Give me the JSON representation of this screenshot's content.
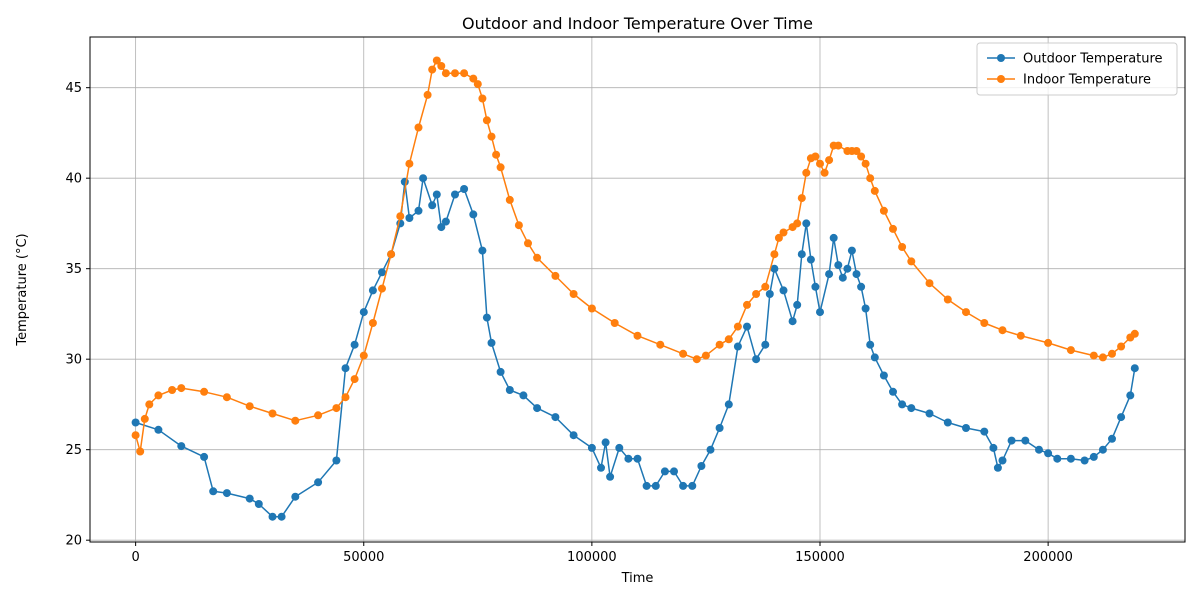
{
  "chart_data": {
    "type": "line",
    "title": "Outdoor and Indoor Temperature Over Time",
    "xlabel": "Time",
    "ylabel": "Temperature (°C)",
    "xlim": [
      -10000,
      230000
    ],
    "ylim": [
      19.9,
      47.8
    ],
    "xticks": [
      0,
      50000,
      100000,
      150000,
      200000
    ],
    "yticks": [
      20,
      25,
      30,
      35,
      40,
      45
    ],
    "grid": true,
    "legend_position": "top-right",
    "series": [
      {
        "name": "Outdoor Temperature",
        "color": "#1f77b4",
        "marker": "circle",
        "x": [
          0,
          5000,
          10000,
          15000,
          17000,
          20000,
          25000,
          27000,
          30000,
          32000,
          35000,
          40000,
          44000,
          46000,
          48000,
          50000,
          52000,
          54000,
          56000,
          58000,
          59000,
          60000,
          62000,
          63000,
          65000,
          66000,
          67000,
          68000,
          70000,
          72000,
          74000,
          76000,
          77000,
          78000,
          80000,
          82000,
          85000,
          88000,
          92000,
          96000,
          100000,
          102000,
          103000,
          104000,
          106000,
          108000,
          110000,
          112000,
          114000,
          116000,
          118000,
          120000,
          122000,
          124000,
          126000,
          128000,
          130000,
          132000,
          134000,
          136000,
          138000,
          139000,
          140000,
          142000,
          144000,
          145000,
          146000,
          147000,
          148000,
          149000,
          150000,
          152000,
          153000,
          154000,
          155000,
          156000,
          157000,
          158000,
          159000,
          160000,
          161000,
          162000,
          164000,
          166000,
          168000,
          170000,
          174000,
          178000,
          182000,
          186000,
          188000,
          189000,
          190000,
          192000,
          195000,
          198000,
          200000,
          202000,
          205000,
          208000,
          210000,
          212000,
          214000,
          216000,
          218000,
          219000
        ],
        "y": [
          26.5,
          26.1,
          25.2,
          24.6,
          22.7,
          22.6,
          22.3,
          22.0,
          21.3,
          21.3,
          22.4,
          23.2,
          24.4,
          29.5,
          30.8,
          32.6,
          33.8,
          34.8,
          35.8,
          37.5,
          39.8,
          37.8,
          38.2,
          40.0,
          38.5,
          39.1,
          37.3,
          37.6,
          39.1,
          39.4,
          38.0,
          36.0,
          32.3,
          30.9,
          29.3,
          28.3,
          28.0,
          27.3,
          26.8,
          25.8,
          25.1,
          24.0,
          25.4,
          23.5,
          25.1,
          24.5,
          24.5,
          23.0,
          23.0,
          23.8,
          23.8,
          23.0,
          23.0,
          24.1,
          25.0,
          26.2,
          27.5,
          30.7,
          31.8,
          30.0,
          30.8,
          33.6,
          35.0,
          33.8,
          32.1,
          33.0,
          35.8,
          37.5,
          35.5,
          34.0,
          32.6,
          34.7,
          36.7,
          35.2,
          34.5,
          35.0,
          36.0,
          34.7,
          34.0,
          32.8,
          30.8,
          30.1,
          29.1,
          28.2,
          27.5,
          27.3,
          27.0,
          26.5,
          26.2,
          26.0,
          25.1,
          24.0,
          24.4,
          25.5,
          25.5,
          25.0,
          24.8,
          24.5,
          24.5,
          24.4,
          24.6,
          25.0,
          25.6,
          26.8,
          28.0,
          29.5
        ]
      },
      {
        "name": "Indoor Temperature",
        "color": "#ff7f0e",
        "marker": "circle",
        "x": [
          0,
          1000,
          2000,
          3000,
          5000,
          8000,
          10000,
          15000,
          20000,
          25000,
          30000,
          35000,
          40000,
          44000,
          46000,
          48000,
          50000,
          52000,
          54000,
          56000,
          58000,
          60000,
          62000,
          64000,
          65000,
          66000,
          67000,
          68000,
          70000,
          72000,
          74000,
          75000,
          76000,
          77000,
          78000,
          79000,
          80000,
          82000,
          84000,
          86000,
          88000,
          92000,
          96000,
          100000,
          105000,
          110000,
          115000,
          120000,
          123000,
          125000,
          128000,
          130000,
          132000,
          134000,
          136000,
          138000,
          140000,
          141000,
          142000,
          144000,
          145000,
          146000,
          147000,
          148000,
          149000,
          150000,
          151000,
          152000,
          153000,
          154000,
          156000,
          157000,
          158000,
          159000,
          160000,
          161000,
          162000,
          164000,
          166000,
          168000,
          170000,
          174000,
          178000,
          182000,
          186000,
          190000,
          194000,
          200000,
          205000,
          210000,
          212000,
          214000,
          216000,
          218000,
          219000
        ],
        "y": [
          25.8,
          24.9,
          26.7,
          27.5,
          28.0,
          28.3,
          28.4,
          28.2,
          27.9,
          27.4,
          27.0,
          26.6,
          26.9,
          27.3,
          27.9,
          28.9,
          30.2,
          32.0,
          33.9,
          35.8,
          37.9,
          40.8,
          42.8,
          44.6,
          46.0,
          46.5,
          46.2,
          45.8,
          45.8,
          45.8,
          45.5,
          45.2,
          44.4,
          43.2,
          42.3,
          41.3,
          40.6,
          38.8,
          37.4,
          36.4,
          35.6,
          34.6,
          33.6,
          32.8,
          32.0,
          31.3,
          30.8,
          30.3,
          30.0,
          30.2,
          30.8,
          31.1,
          31.8,
          33.0,
          33.6,
          34.0,
          35.8,
          36.7,
          37.0,
          37.3,
          37.5,
          38.9,
          40.3,
          41.1,
          41.2,
          40.8,
          40.3,
          41.0,
          41.8,
          41.8,
          41.5,
          41.5,
          41.5,
          41.2,
          40.8,
          40.0,
          39.3,
          38.2,
          37.2,
          36.2,
          35.4,
          34.2,
          33.3,
          32.6,
          32.0,
          31.6,
          31.3,
          30.9,
          30.5,
          30.2,
          30.1,
          30.3,
          30.7,
          31.2,
          31.4
        ]
      }
    ]
  }
}
